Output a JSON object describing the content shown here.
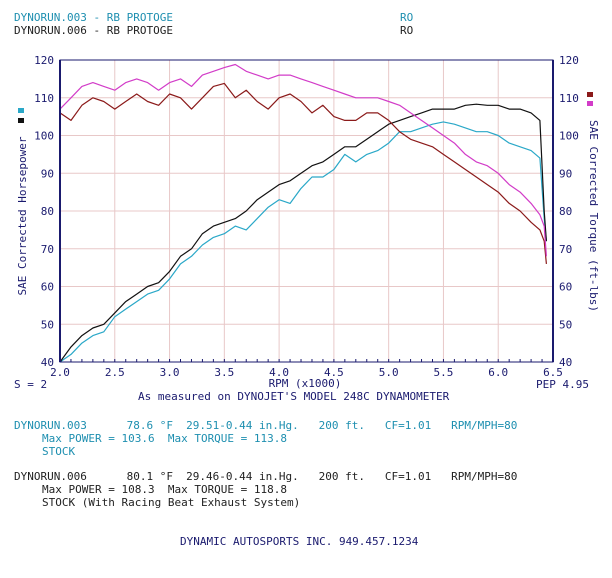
{
  "header": {
    "run1_title": "DYNORUN.003 - RB PROTOGE",
    "run1_code": "RO",
    "run2_title": "DYNORUN.006 - RB PROTOGE",
    "run2_code": "RO"
  },
  "chart_info": {
    "smoothing": "S = 2",
    "pep": "PEP 4.95",
    "measured": "As measured on DYNOJET'S MODEL 248C DYNAMOMETER"
  },
  "runs": [
    {
      "line1": "DYNORUN.003      78.6 °F  29.51-0.44 in.Hg.   200 ft.   CF=1.01   RPM/MPH=80",
      "line2": "Max POWER = 103.6  Max TORQUE = 113.8",
      "line3": "STOCK"
    },
    {
      "line1": "DYNORUN.006      80.1 °F  29.46-0.44 in.Hg.   200 ft.   CF=1.01   RPM/MPH=80",
      "line2": "Max POWER = 108.3  Max TORQUE = 118.8",
      "line3": "STOCK (With Racing Beat Exhaust System)"
    }
  ],
  "footer": "DYNAMIC AUTOSPORTS INC. 949.457.1234",
  "colors": {
    "run003_power": "#2aa8c8",
    "run006_power": "#111111",
    "run003_torque": "#8b1a1a",
    "run006_torque": "#d23cc8",
    "grid": "#e8c8c8",
    "axis": "#1a1a6e"
  },
  "chart_data": {
    "type": "line",
    "xlabel": "RPM (x1000)",
    "ylabel": "SAE Corrected Horsepower",
    "y2label": "SAE Corrected Torque (ft-lbs)",
    "xlim": [
      2.0,
      6.5
    ],
    "ylim": [
      40,
      120
    ],
    "y2lim": [
      40,
      120
    ],
    "x_ticks": [
      "2.0",
      "2.5",
      "3.0",
      "3.5",
      "4.0",
      "4.5",
      "5.0",
      "5.5",
      "6.0",
      "6.5"
    ],
    "y_ticks": [
      "40",
      "50",
      "60",
      "70",
      "80",
      "90",
      "100",
      "110",
      "120"
    ],
    "grid": true,
    "series": [
      {
        "name": "DYNORUN.003",
        "axis": "left",
        "color": "#2aa8c8",
        "x": [
          2.0,
          2.1,
          2.2,
          2.3,
          2.4,
          2.5,
          2.6,
          2.7,
          2.8,
          2.9,
          3.0,
          3.1,
          3.2,
          3.3,
          3.4,
          3.5,
          3.6,
          3.7,
          3.8,
          3.9,
          4.0,
          4.1,
          4.2,
          4.3,
          4.4,
          4.5,
          4.6,
          4.7,
          4.8,
          4.9,
          5.0,
          5.1,
          5.2,
          5.3,
          5.4,
          5.5,
          5.6,
          5.7,
          5.8,
          5.9,
          6.0,
          6.1,
          6.2,
          6.3,
          6.38,
          6.42,
          6.44
        ],
        "values": [
          40,
          42,
          45,
          47,
          48,
          52,
          54,
          56,
          58,
          59,
          62,
          66,
          68,
          71,
          73,
          74,
          76,
          75,
          78,
          81,
          83,
          82,
          86,
          89,
          89,
          91,
          95,
          93,
          95,
          96,
          98,
          101,
          101,
          102,
          103,
          103.6,
          103,
          102,
          101,
          101,
          100,
          98,
          97,
          96,
          94,
          78,
          72
        ]
      },
      {
        "name": "DYNORUN.006",
        "axis": "left",
        "color": "#111111",
        "x": [
          2.0,
          2.1,
          2.2,
          2.3,
          2.4,
          2.5,
          2.6,
          2.7,
          2.8,
          2.9,
          3.0,
          3.1,
          3.2,
          3.3,
          3.4,
          3.5,
          3.6,
          3.7,
          3.8,
          3.9,
          4.0,
          4.1,
          4.2,
          4.3,
          4.4,
          4.5,
          4.6,
          4.7,
          4.8,
          4.9,
          5.0,
          5.1,
          5.2,
          5.3,
          5.4,
          5.5,
          5.6,
          5.7,
          5.8,
          5.9,
          6.0,
          6.1,
          6.2,
          6.3,
          6.38,
          6.42,
          6.44
        ],
        "values": [
          40,
          44,
          47,
          49,
          50,
          53,
          56,
          58,
          60,
          61,
          64,
          68,
          70,
          74,
          76,
          77,
          78,
          80,
          83,
          85,
          87,
          88,
          90,
          92,
          93,
          95,
          97,
          97,
          99,
          101,
          103,
          104,
          105,
          106,
          107,
          107,
          107,
          108,
          108.3,
          108,
          108,
          107,
          107,
          106,
          104,
          80,
          72
        ]
      },
      {
        "name": "DYNORUN.003",
        "axis": "right",
        "color": "#8b1a1a",
        "x": [
          2.0,
          2.1,
          2.2,
          2.3,
          2.4,
          2.5,
          2.6,
          2.7,
          2.8,
          2.9,
          3.0,
          3.1,
          3.2,
          3.3,
          3.4,
          3.5,
          3.6,
          3.7,
          3.8,
          3.9,
          4.0,
          4.1,
          4.2,
          4.3,
          4.4,
          4.5,
          4.6,
          4.7,
          4.8,
          4.9,
          5.0,
          5.1,
          5.2,
          5.3,
          5.4,
          5.5,
          5.6,
          5.7,
          5.8,
          5.9,
          6.0,
          6.1,
          6.2,
          6.3,
          6.38,
          6.42,
          6.44
        ],
        "values": [
          106,
          104,
          108,
          110,
          109,
          107,
          109,
          111,
          109,
          108,
          111,
          110,
          107,
          110,
          113,
          113.8,
          110,
          112,
          109,
          107,
          110,
          111,
          109,
          106,
          108,
          105,
          104,
          104,
          106,
          106,
          104,
          101,
          99,
          98,
          97,
          95,
          93,
          91,
          89,
          87,
          85,
          82,
          80,
          77,
          75,
          72,
          66
        ]
      },
      {
        "name": "DYNORUN.006",
        "axis": "right",
        "color": "#d23cc8",
        "x": [
          2.0,
          2.1,
          2.2,
          2.3,
          2.4,
          2.5,
          2.6,
          2.7,
          2.8,
          2.9,
          3.0,
          3.1,
          3.2,
          3.3,
          3.4,
          3.5,
          3.6,
          3.7,
          3.8,
          3.9,
          4.0,
          4.1,
          4.2,
          4.3,
          4.4,
          4.5,
          4.6,
          4.7,
          4.8,
          4.9,
          5.0,
          5.1,
          5.2,
          5.3,
          5.4,
          5.5,
          5.6,
          5.7,
          5.8,
          5.9,
          6.0,
          6.1,
          6.2,
          6.3,
          6.38,
          6.42,
          6.44
        ],
        "values": [
          107,
          110,
          113,
          114,
          113,
          112,
          114,
          115,
          114,
          112,
          114,
          115,
          113,
          116,
          117,
          118,
          118.8,
          117,
          116,
          115,
          116,
          116,
          115,
          114,
          113,
          112,
          111,
          110,
          110,
          110,
          109,
          108,
          106,
          104,
          102,
          100,
          98,
          95,
          93,
          92,
          90,
          87,
          85,
          82,
          79,
          76,
          68
        ]
      }
    ]
  }
}
